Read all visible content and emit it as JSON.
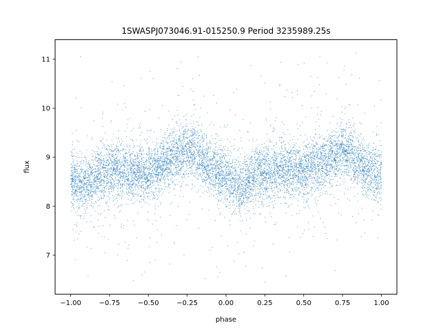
{
  "chart_data": {
    "type": "scatter",
    "title": "1SWASPJ073046.91-015250.9 Period 3235989.25s",
    "xlabel": "phase",
    "ylabel": "flux",
    "xlim": [
      -1.1,
      1.1
    ],
    "ylim": [
      6.2,
      11.4
    ],
    "x_ticks": [
      -1.0,
      -0.75,
      -0.5,
      -0.25,
      0.0,
      0.25,
      0.5,
      0.75,
      1.0
    ],
    "x_tick_labels": [
      "−1.00",
      "−0.75",
      "−0.50",
      "−0.25",
      "0.00",
      "0.25",
      "0.50",
      "0.75",
      "1.00"
    ],
    "y_ticks": [
      7,
      8,
      9,
      10,
      11
    ],
    "y_tick_labels": [
      "7",
      "8",
      "9",
      "10",
      "11"
    ],
    "grid": false,
    "legend": "none",
    "series": [
      {
        "color": "#1f77b4",
        "marker": "point",
        "phase_profile": {
          "x": [
            -1.0,
            -0.9,
            -0.8,
            -0.7,
            -0.6,
            -0.5,
            -0.4,
            -0.3,
            -0.25,
            -0.2,
            -0.1,
            0.0,
            0.05,
            0.1,
            0.2,
            0.3,
            0.4,
            0.5,
            0.6,
            0.7,
            0.75,
            0.8,
            0.9,
            1.0
          ],
          "median_flux": [
            8.5,
            8.4,
            8.7,
            8.75,
            8.7,
            8.65,
            8.85,
            9.05,
            9.15,
            9.1,
            8.75,
            8.6,
            8.5,
            8.35,
            8.7,
            8.7,
            8.75,
            8.7,
            8.85,
            9.05,
            9.15,
            9.1,
            8.75,
            8.6
          ]
        },
        "flux_range": [
          6.4,
          11.2
        ],
        "approx_point_count": 20000
      }
    ]
  }
}
